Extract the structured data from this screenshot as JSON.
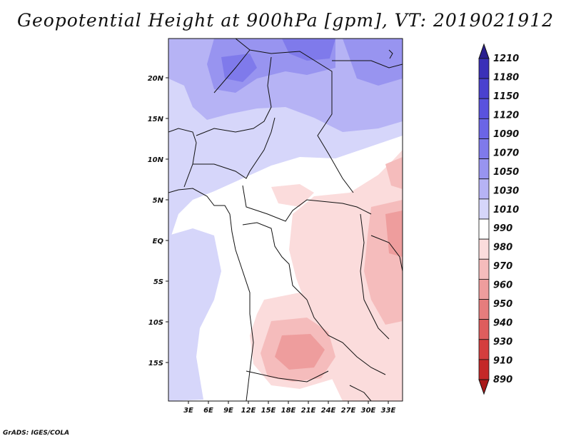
{
  "title": "Geopotential Height at 900hPa [gpm], VT: 2019021912",
  "credit": "GrADS: IGES/COLA",
  "lat_labels": [
    "20N",
    "15N",
    "10N",
    "5N",
    "EQ",
    "5S",
    "10S",
    "15S"
  ],
  "lon_labels": [
    "3E",
    "6E",
    "9E",
    "12E",
    "15E",
    "18E",
    "21E",
    "24E",
    "27E",
    "30E",
    "33E"
  ],
  "colorbar": {
    "labels": [
      "1210",
      "1180",
      "1150",
      "1120",
      "1090",
      "1070",
      "1050",
      "1030",
      "1010",
      "990",
      "980",
      "970",
      "960",
      "950",
      "940",
      "930",
      "910",
      "890"
    ],
    "colors": [
      "#2a1f8f",
      "#3a30b8",
      "#4a41cf",
      "#5a52de",
      "#6b65e6",
      "#7f7aeb",
      "#9894f0",
      "#b6b3f5",
      "#d6d6fa",
      "#ffffff",
      "#fbdcdc",
      "#f5bcbc",
      "#ee9d9d",
      "#e67d7d",
      "#de5d5d",
      "#d43e3e",
      "#c42828",
      "#a81a1a"
    ]
  }
}
